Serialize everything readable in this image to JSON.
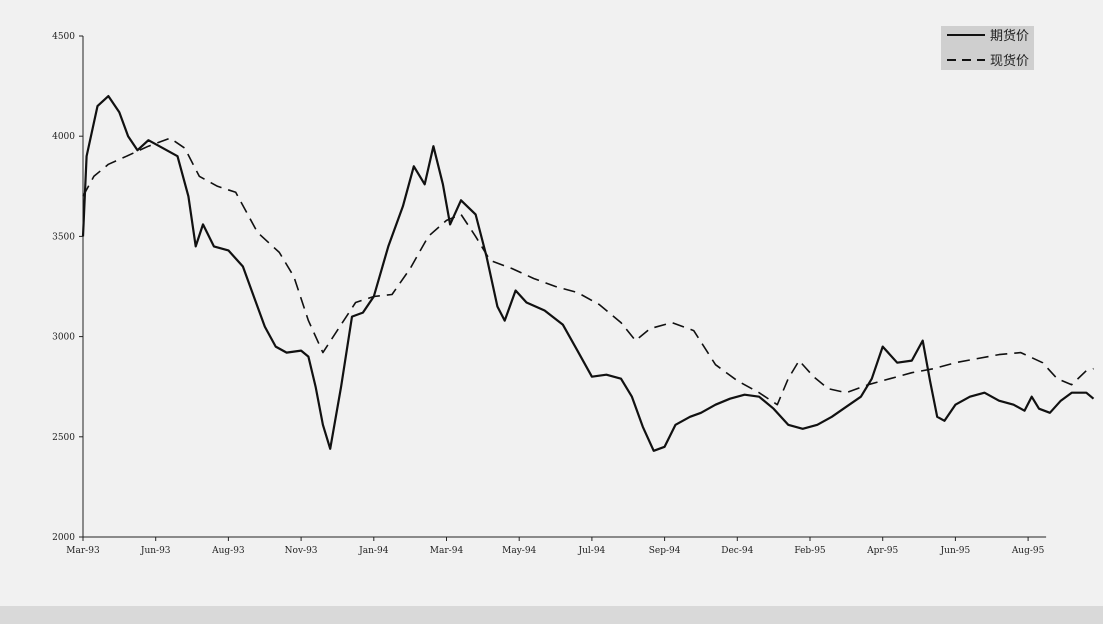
{
  "chart_data": {
    "type": "line",
    "title": "",
    "xlabel": "",
    "ylabel": "",
    "ylim": [
      2000,
      4500
    ],
    "yticks": [
      2000,
      2500,
      3000,
      3500,
      4000,
      4500
    ],
    "xticks": [
      "Mar-93",
      "Jun-93",
      "Aug-93",
      "Nov-93",
      "Jan-94",
      "Mar-94",
      "May-94",
      "Jul-94",
      "Sep-94",
      "Dec-94",
      "Feb-95",
      "Apr-95",
      "Jun-95",
      "Aug-95"
    ],
    "legend_position": "top-right",
    "grid": false,
    "series": [
      {
        "name": "期货价",
        "style": "solid",
        "color": "#111111",
        "points": [
          [
            0.0,
            3500
          ],
          [
            0.05,
            3900
          ],
          [
            0.2,
            4150
          ],
          [
            0.35,
            4200
          ],
          [
            0.5,
            4120
          ],
          [
            0.62,
            4000
          ],
          [
            0.75,
            3930
          ],
          [
            0.9,
            3980
          ],
          [
            1.1,
            3940
          ],
          [
            1.3,
            3900
          ],
          [
            1.45,
            3700
          ],
          [
            1.55,
            3450
          ],
          [
            1.65,
            3560
          ],
          [
            1.8,
            3450
          ],
          [
            2.0,
            3430
          ],
          [
            2.2,
            3350
          ],
          [
            2.35,
            3200
          ],
          [
            2.5,
            3050
          ],
          [
            2.65,
            2950
          ],
          [
            2.8,
            2920
          ],
          [
            3.0,
            2930
          ],
          [
            3.1,
            2900
          ],
          [
            3.2,
            2750
          ],
          [
            3.3,
            2560
          ],
          [
            3.4,
            2440
          ],
          [
            3.55,
            2750
          ],
          [
            3.7,
            3100
          ],
          [
            3.85,
            3120
          ],
          [
            4.0,
            3200
          ],
          [
            4.2,
            3450
          ],
          [
            4.4,
            3650
          ],
          [
            4.55,
            3850
          ],
          [
            4.7,
            3760
          ],
          [
            4.82,
            3950
          ],
          [
            4.95,
            3760
          ],
          [
            5.05,
            3560
          ],
          [
            5.2,
            3680
          ],
          [
            5.4,
            3610
          ],
          [
            5.55,
            3400
          ],
          [
            5.7,
            3150
          ],
          [
            5.8,
            3080
          ],
          [
            5.95,
            3230
          ],
          [
            6.1,
            3170
          ],
          [
            6.35,
            3130
          ],
          [
            6.6,
            3060
          ],
          [
            6.8,
            2930
          ],
          [
            7.0,
            2800
          ],
          [
            7.2,
            2810
          ],
          [
            7.4,
            2790
          ],
          [
            7.55,
            2700
          ],
          [
            7.7,
            2550
          ],
          [
            7.85,
            2430
          ],
          [
            8.0,
            2450
          ],
          [
            8.15,
            2560
          ],
          [
            8.35,
            2600
          ],
          [
            8.5,
            2620
          ],
          [
            8.7,
            2660
          ],
          [
            8.9,
            2690
          ],
          [
            9.1,
            2710
          ],
          [
            9.3,
            2700
          ],
          [
            9.5,
            2640
          ],
          [
            9.7,
            2560
          ],
          [
            9.9,
            2540
          ],
          [
            10.1,
            2560
          ],
          [
            10.3,
            2600
          ],
          [
            10.5,
            2650
          ],
          [
            10.7,
            2700
          ],
          [
            10.85,
            2790
          ],
          [
            11.0,
            2950
          ],
          [
            11.2,
            2870
          ],
          [
            11.4,
            2880
          ],
          [
            11.55,
            2980
          ],
          [
            11.65,
            2780
          ],
          [
            11.75,
            2600
          ],
          [
            11.85,
            2580
          ],
          [
            12.0,
            2660
          ],
          [
            12.2,
            2700
          ],
          [
            12.4,
            2720
          ],
          [
            12.6,
            2680
          ],
          [
            12.8,
            2660
          ],
          [
            12.95,
            2630
          ],
          [
            13.05,
            2700
          ],
          [
            13.15,
            2640
          ],
          [
            13.3,
            2620
          ],
          [
            13.45,
            2680
          ],
          [
            13.6,
            2720
          ],
          [
            13.8,
            2720
          ],
          [
            13.9,
            2690
          ]
        ]
      },
      {
        "name": "现货价",
        "style": "dashed",
        "color": "#111111",
        "points": [
          [
            0.0,
            3700
          ],
          [
            0.15,
            3800
          ],
          [
            0.35,
            3860
          ],
          [
            0.6,
            3900
          ],
          [
            0.9,
            3950
          ],
          [
            1.2,
            3990
          ],
          [
            1.4,
            3940
          ],
          [
            1.6,
            3800
          ],
          [
            1.85,
            3750
          ],
          [
            2.1,
            3720
          ],
          [
            2.4,
            3520
          ],
          [
            2.7,
            3420
          ],
          [
            2.9,
            3300
          ],
          [
            3.1,
            3080
          ],
          [
            3.3,
            2920
          ],
          [
            3.55,
            3060
          ],
          [
            3.75,
            3170
          ],
          [
            4.0,
            3200
          ],
          [
            4.25,
            3210
          ],
          [
            4.5,
            3340
          ],
          [
            4.75,
            3500
          ],
          [
            5.0,
            3580
          ],
          [
            5.2,
            3610
          ],
          [
            5.4,
            3500
          ],
          [
            5.6,
            3380
          ],
          [
            5.9,
            3340
          ],
          [
            6.2,
            3290
          ],
          [
            6.5,
            3250
          ],
          [
            6.8,
            3220
          ],
          [
            7.1,
            3160
          ],
          [
            7.4,
            3070
          ],
          [
            7.6,
            2980
          ],
          [
            7.8,
            3040
          ],
          [
            8.1,
            3070
          ],
          [
            8.4,
            3030
          ],
          [
            8.7,
            2860
          ],
          [
            9.0,
            2780
          ],
          [
            9.3,
            2720
          ],
          [
            9.55,
            2660
          ],
          [
            9.7,
            2790
          ],
          [
            9.85,
            2880
          ],
          [
            10.05,
            2800
          ],
          [
            10.25,
            2740
          ],
          [
            10.5,
            2720
          ],
          [
            10.8,
            2760
          ],
          [
            11.1,
            2790
          ],
          [
            11.4,
            2820
          ],
          [
            11.7,
            2840
          ],
          [
            12.0,
            2870
          ],
          [
            12.3,
            2890
          ],
          [
            12.6,
            2910
          ],
          [
            12.9,
            2920
          ],
          [
            13.2,
            2870
          ],
          [
            13.4,
            2790
          ],
          [
            13.6,
            2760
          ],
          [
            13.8,
            2830
          ],
          [
            13.9,
            2840
          ]
        ]
      }
    ]
  },
  "colors": {
    "background": "#f1f1f1",
    "legend_box": "#cfcfcf",
    "line": "#111111"
  }
}
